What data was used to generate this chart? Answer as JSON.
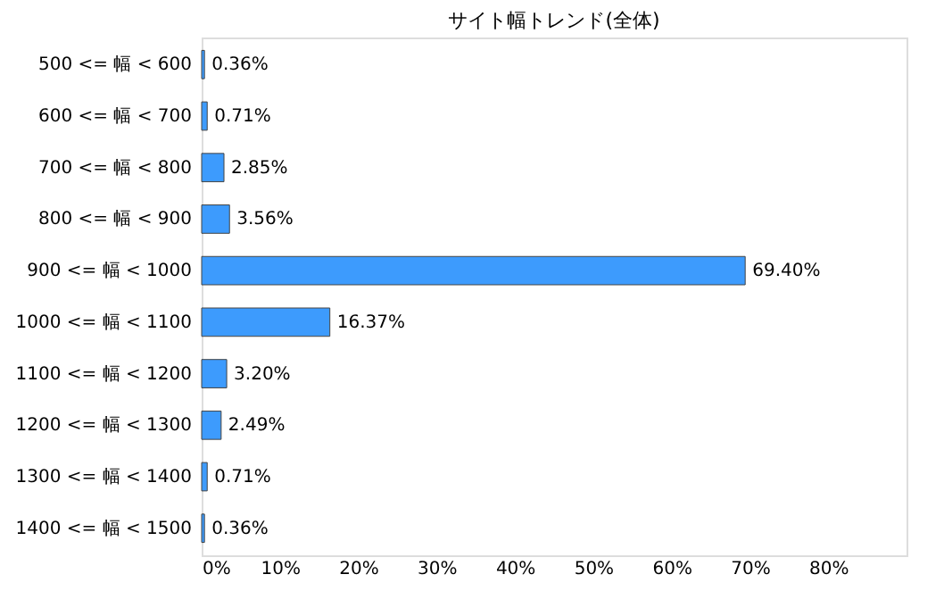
{
  "chart_data": {
    "type": "bar",
    "orientation": "horizontal",
    "title": "サイト幅トレンド(全体)",
    "categories": [
      "500 <= 幅 < 600",
      "600 <= 幅 < 700",
      "700 <= 幅 < 800",
      "800 <= 幅 < 900",
      "900 <= 幅 < 1000",
      "1000 <= 幅 < 1100",
      "1100 <= 幅 < 1200",
      "1200 <= 幅 < 1300",
      "1300 <= 幅 < 1400",
      "1400 <= 幅 < 1500"
    ],
    "values": [
      0.36,
      0.71,
      2.85,
      3.56,
      69.4,
      16.37,
      3.2,
      2.49,
      0.71,
      0.36
    ],
    "value_labels": [
      "0.36%",
      "0.71%",
      "2.85%",
      "3.56%",
      "69.40%",
      "16.37%",
      "3.20%",
      "2.49%",
      "0.71%",
      "0.36%"
    ],
    "color": "#3d9bfd",
    "xlim": [
      0,
      90
    ],
    "xticks": [
      {
        "value": 0,
        "label": "0%"
      },
      {
        "value": 10,
        "label": "10%"
      },
      {
        "value": 20,
        "label": "20%"
      },
      {
        "value": 30,
        "label": "30%"
      },
      {
        "value": 40,
        "label": "40%"
      },
      {
        "value": 50,
        "label": "50%"
      },
      {
        "value": 60,
        "label": "60%"
      },
      {
        "value": 70,
        "label": "70%"
      },
      {
        "value": 80,
        "label": "80%"
      }
    ],
    "grid": false
  }
}
